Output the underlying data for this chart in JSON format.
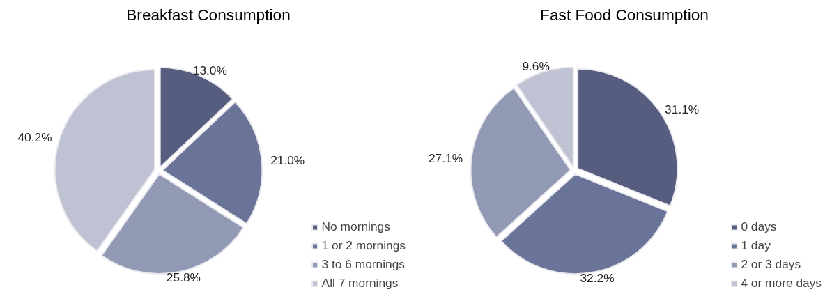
{
  "chart_data": [
    {
      "type": "pie",
      "title": "Breakfast Consumption",
      "categories": [
        "No mornings",
        "1 or 2 mornings",
        "3 to 6 mornings",
        "All 7 mornings"
      ],
      "values": [
        13.0,
        21.0,
        25.8,
        40.2
      ],
      "value_labels": [
        "13.0%",
        "21.0%",
        "25.8%",
        "40.2%"
      ],
      "colors": [
        "#565d7e",
        "#6a7398",
        "#9299b5",
        "#bfc2d2"
      ],
      "legend": "bottom right"
    },
    {
      "type": "pie",
      "title": "Fast Food Consumption",
      "categories": [
        "0 days",
        "1 day",
        "2 or 3 days",
        "4 or more days"
      ],
      "values": [
        31.1,
        32.2,
        27.1,
        9.6
      ],
      "value_labels": [
        "31.1%",
        "32.2%",
        "27.1%",
        "9.6%"
      ],
      "colors": [
        "#565d7e",
        "#6a7398",
        "#9299b5",
        "#bfc2d2"
      ],
      "legend": "bottom right"
    }
  ]
}
